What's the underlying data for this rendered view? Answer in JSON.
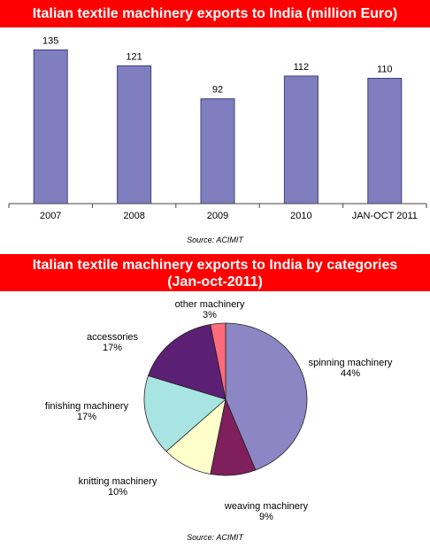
{
  "chart_data": [
    {
      "type": "bar",
      "title": "Italian textile machinery exports to India (million Euro)",
      "categories": [
        "2007",
        "2008",
        "2009",
        "2010",
        "JAN-OCT 2011"
      ],
      "values": [
        135,
        121,
        92,
        112,
        110
      ],
      "ylim": [
        0,
        150
      ],
      "grid": false,
      "source": "Source: ACIMIT",
      "colors": {
        "bar": "#7f7fbf",
        "bar_stroke": "#3f3f7f"
      }
    },
    {
      "type": "pie",
      "title_line1": "Italian textile machinery exports to India by categories",
      "title_line2": "(Jan-oct-2011)",
      "slices": [
        {
          "name": "spinning machinery",
          "value": 44,
          "label": "44%",
          "color": "#8c86c4"
        },
        {
          "name": "weaving machinery",
          "value": 9,
          "label": "9%",
          "color": "#7f1f5c"
        },
        {
          "name": "knitting machinery",
          "value": 10,
          "label": "10%",
          "color": "#ffffcc"
        },
        {
          "name": "finishing machinery",
          "value": 17,
          "label": "17%",
          "color": "#a8e4e2"
        },
        {
          "name": "accessories",
          "value": 17,
          "label": "17%",
          "color": "#5b1f74"
        },
        {
          "name": "other machinery",
          "value": 3,
          "label": "3%",
          "color": "#ff6b7a"
        }
      ],
      "source": "Source:  ACIMIT"
    }
  ]
}
